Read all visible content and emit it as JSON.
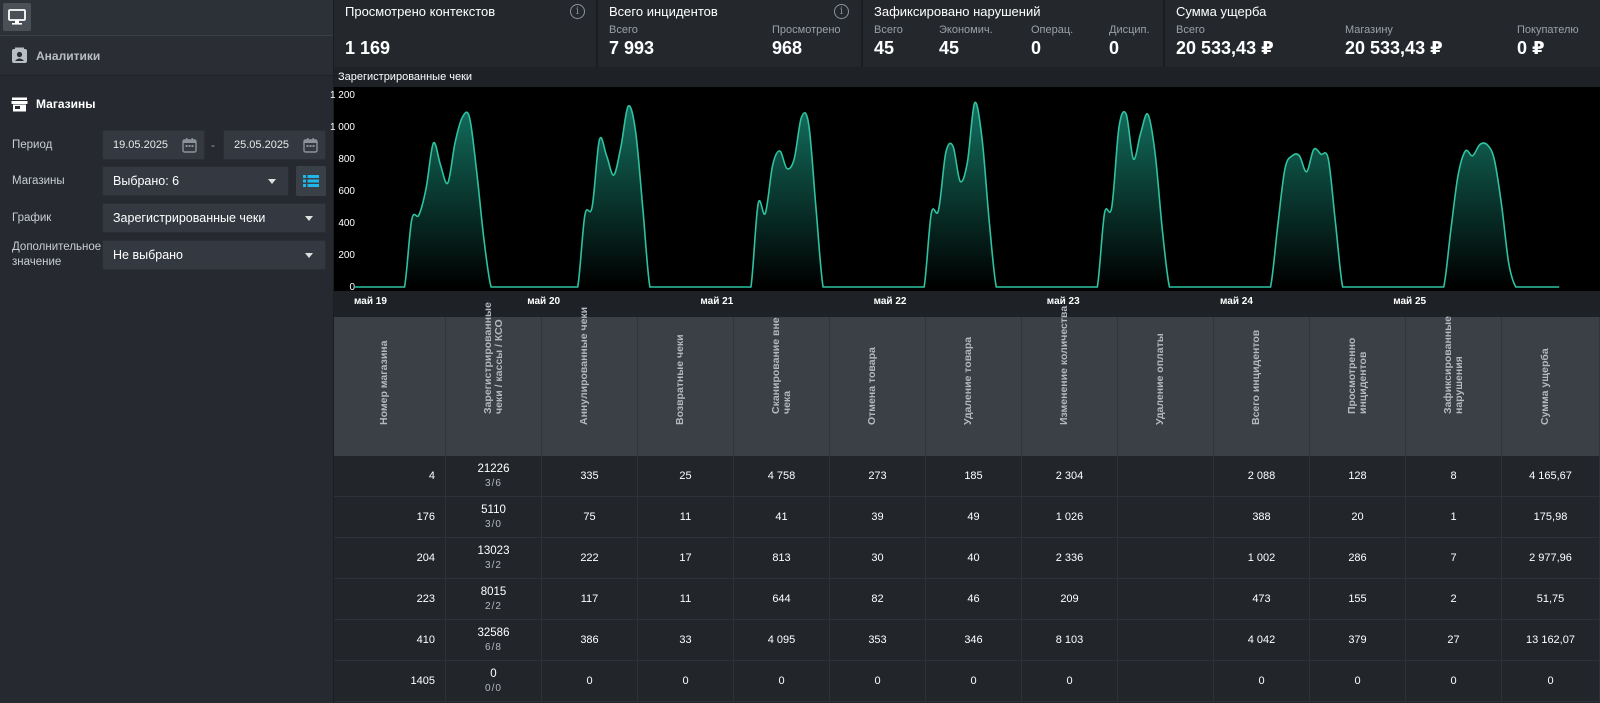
{
  "sidebar": {
    "analytics_label": "Аналитики",
    "shops_label": "Магазины",
    "period": {
      "label": "Период",
      "from": "19.05.2025",
      "dash": "-",
      "to": "25.05.2025"
    },
    "stores": {
      "label": "Магазины",
      "value": "Выбрано: 6"
    },
    "graph": {
      "label": "График",
      "value": "Зарегистрированные чеки"
    },
    "extra": {
      "label_line1": "Дополнительное",
      "label_line2": "значение",
      "value": "Не выбрано"
    }
  },
  "kpis": {
    "contexts": {
      "title": "Просмотрено контекстов",
      "value": "1 169"
    },
    "incidents": {
      "title": "Всего инцидентов",
      "total_label": "Всего",
      "total": "7 993",
      "viewed_label": "Просмотрено",
      "viewed": "968"
    },
    "violations": {
      "title": "Зафиксировано нарушений",
      "total_label": "Всего",
      "total": "45",
      "econ_label": "Экономич.",
      "econ": "45",
      "oper_label": "Операц.",
      "oper": "0",
      "disc_label": "Дисцип.",
      "disc": "0"
    },
    "damage": {
      "title": "Сумма ущерба",
      "total_label": "Всего",
      "total": "20 533,43 ₽",
      "store_label": "Магазину",
      "store": "20 533,43 ₽",
      "buyer_label": "Покупателю",
      "buyer": "0 ₽"
    }
  },
  "chart_data": {
    "type": "area",
    "title": "Зарегистрированные чеки",
    "ylim": [
      0,
      1200
    ],
    "yticks": [
      "1 200",
      "1 000",
      "800",
      "600",
      "400",
      "200",
      "0"
    ],
    "xticks": [
      "май 19",
      "май 20",
      "май 21",
      "май 22",
      "май 23",
      "май 24",
      "май 25"
    ],
    "days": [
      {
        "day": "май 19",
        "hours": [
          0,
          0,
          0,
          0,
          0,
          0,
          0,
          0,
          420,
          450,
          620,
          900,
          760,
          650,
          900,
          1060,
          1060,
          720,
          300,
          0,
          0,
          0,
          0,
          0
        ]
      },
      {
        "day": "май 20",
        "hours": [
          0,
          0,
          0,
          0,
          0,
          0,
          0,
          0,
          450,
          500,
          920,
          820,
          700,
          880,
          1130,
          980,
          500,
          0,
          0,
          0,
          0,
          0,
          0,
          0
        ]
      },
      {
        "day": "май 21",
        "hours": [
          0,
          0,
          0,
          0,
          0,
          0,
          0,
          0,
          520,
          460,
          760,
          850,
          740,
          800,
          1060,
          1020,
          500,
          0,
          0,
          0,
          0,
          0,
          0,
          0
        ]
      },
      {
        "day": "май 22",
        "hours": [
          0,
          0,
          0,
          0,
          0,
          0,
          0,
          0,
          460,
          480,
          840,
          880,
          660,
          780,
          1150,
          940,
          420,
          0,
          0,
          0,
          0,
          0,
          0,
          0
        ]
      },
      {
        "day": "май 23",
        "hours": [
          0,
          0,
          0,
          0,
          0,
          0,
          0,
          0,
          460,
          500,
          1000,
          1080,
          800,
          960,
          1080,
          840,
          360,
          0,
          0,
          0,
          0,
          0,
          0,
          0
        ]
      },
      {
        "day": "май 24",
        "hours": [
          0,
          0,
          0,
          0,
          0,
          0,
          0,
          0,
          380,
          740,
          820,
          820,
          720,
          860,
          830,
          800,
          400,
          0,
          0,
          0,
          0,
          0,
          0,
          0
        ]
      },
      {
        "day": "май 25",
        "hours": [
          0,
          0,
          0,
          0,
          0,
          0,
          0,
          0,
          360,
          700,
          850,
          820,
          890,
          890,
          800,
          520,
          150,
          0,
          0,
          0,
          0,
          0,
          0,
          0
        ]
      }
    ],
    "colors": {
      "line": "#2ec2a0",
      "fill_top": "#13705f",
      "fill_bottom": "#000000"
    }
  },
  "table": {
    "columns": [
      "Номер магазина",
      "Зарегистрированные чеки / кассы / КСО",
      "Аннулированные чеки",
      "Возвратные чеки",
      "Сканирование вне чека",
      "Отмена товара",
      "Удаление товара",
      "Изменение количества",
      "Удаление оплаты",
      "Всего инцидентов",
      "Просмотренно инцидентов",
      "Зафиксированные нарушения",
      "Сумма ущерба"
    ],
    "rows": [
      {
        "store": "4",
        "checks": "21226",
        "checks_sub": "3/6",
        "annul": "335",
        "ret": "25",
        "scan": "4 758",
        "cancel": "273",
        "del": "185",
        "qty": "2 304",
        "pay": "",
        "total": "2 088",
        "viewed": "128",
        "fixed": "8",
        "damage": "4 165,67"
      },
      {
        "store": "176",
        "checks": "5110",
        "checks_sub": "3/0",
        "annul": "75",
        "ret": "11",
        "scan": "41",
        "cancel": "39",
        "del": "49",
        "qty": "1 026",
        "pay": "",
        "total": "388",
        "viewed": "20",
        "fixed": "1",
        "damage": "175,98"
      },
      {
        "store": "204",
        "checks": "13023",
        "checks_sub": "3/2",
        "annul": "222",
        "ret": "17",
        "scan": "813",
        "cancel": "30",
        "del": "40",
        "qty": "2 336",
        "pay": "",
        "total": "1 002",
        "viewed": "286",
        "fixed": "7",
        "damage": "2 977,96"
      },
      {
        "store": "223",
        "checks": "8015",
        "checks_sub": "2/2",
        "annul": "117",
        "ret": "11",
        "scan": "644",
        "cancel": "82",
        "del": "46",
        "qty": "209",
        "pay": "",
        "total": "473",
        "viewed": "155",
        "fixed": "2",
        "damage": "51,75"
      },
      {
        "store": "410",
        "checks": "32586",
        "checks_sub": "6/8",
        "annul": "386",
        "ret": "33",
        "scan": "4 095",
        "cancel": "353",
        "del": "346",
        "qty": "8 103",
        "pay": "",
        "total": "4 042",
        "viewed": "379",
        "fixed": "27",
        "damage": "13 162,07"
      },
      {
        "store": "1405",
        "checks": "0",
        "checks_sub": "0/0",
        "annul": "0",
        "ret": "0",
        "scan": "0",
        "cancel": "0",
        "del": "0",
        "qty": "0",
        "pay": "",
        "total": "0",
        "viewed": "0",
        "fixed": "0",
        "damage": "0"
      }
    ]
  }
}
